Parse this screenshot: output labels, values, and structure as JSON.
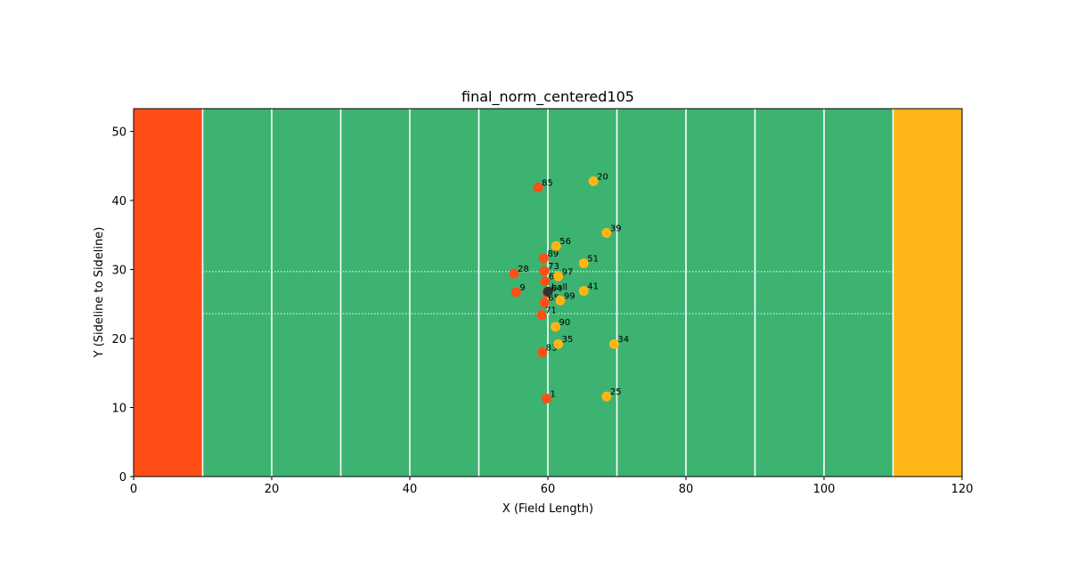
{
  "chart_data": {
    "type": "scatter",
    "title": "final_norm_centered105",
    "xlabel": "X (Field Length)",
    "ylabel": "Y (Sideline to Sideline)",
    "xlim": [
      0,
      120
    ],
    "ylim": [
      0,
      53.3
    ],
    "xticks": [
      "0",
      "20",
      "40",
      "60",
      "80",
      "100",
      "120"
    ],
    "yticks": [
      "0",
      "10",
      "20",
      "30",
      "40",
      "50"
    ],
    "field": {
      "color": "#3cb371",
      "endzones": [
        {
          "x": [
            0,
            10
          ],
          "color": "#ff4f17"
        },
        {
          "x": [
            110,
            120
          ],
          "color": "#ffb515"
        }
      ],
      "yard_lines": [
        10,
        20,
        30,
        40,
        50,
        60,
        70,
        80,
        90,
        100,
        110
      ],
      "hash_lines_y": [
        23.6,
        29.7
      ]
    },
    "series": [
      {
        "color": "#ff4f17",
        "points": [
          {
            "x": 58.6,
            "y": 41.9,
            "label": "85"
          },
          {
            "x": 59.4,
            "y": 31.6,
            "label": "89"
          },
          {
            "x": 59.5,
            "y": 29.8,
            "label": "73"
          },
          {
            "x": 55.1,
            "y": 29.4,
            "label": "28"
          },
          {
            "x": 59.6,
            "y": 28.3,
            "label": "67"
          },
          {
            "x": 55.4,
            "y": 26.7,
            "label": "9"
          },
          {
            "x": 59.9,
            "y": 26.6,
            "label": "64"
          },
          {
            "x": 59.5,
            "y": 25.2,
            "label": "65"
          },
          {
            "x": 59.1,
            "y": 23.4,
            "label": "71"
          },
          {
            "x": 59.2,
            "y": 18.0,
            "label": "83"
          },
          {
            "x": 59.8,
            "y": 11.3,
            "label": "1"
          }
        ]
      },
      {
        "color": "#ffb515",
        "points": [
          {
            "x": 66.6,
            "y": 42.8,
            "label": "20"
          },
          {
            "x": 68.5,
            "y": 35.3,
            "label": "39"
          },
          {
            "x": 61.2,
            "y": 33.4,
            "label": "56"
          },
          {
            "x": 65.2,
            "y": 30.9,
            "label": "51"
          },
          {
            "x": 61.5,
            "y": 29.0,
            "label": "97"
          },
          {
            "x": 65.2,
            "y": 26.9,
            "label": "41"
          },
          {
            "x": 61.8,
            "y": 25.5,
            "label": "99"
          },
          {
            "x": 61.1,
            "y": 21.7,
            "label": "90"
          },
          {
            "x": 61.5,
            "y": 19.2,
            "label": "35"
          },
          {
            "x": 69.6,
            "y": 19.2,
            "label": "34"
          },
          {
            "x": 68.5,
            "y": 11.6,
            "label": "25"
          }
        ]
      },
      {
        "color": "#333333",
        "points": [
          {
            "x": 60.0,
            "y": 26.8,
            "label": "ball"
          }
        ]
      }
    ]
  }
}
